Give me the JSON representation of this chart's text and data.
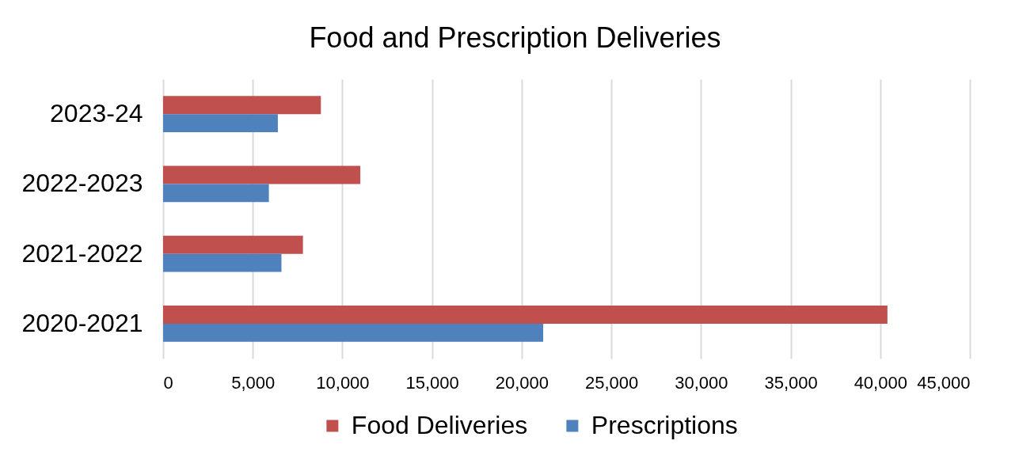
{
  "chart_data": {
    "type": "bar",
    "title": "Food and Prescription Deliveries",
    "orientation": "horizontal",
    "categories": [
      "2023-24",
      "2022-2023",
      "2021-2022",
      "2020-2021"
    ],
    "series": [
      {
        "name": "Food Deliveries",
        "color": "#c0504d",
        "values": [
          8800,
          11000,
          7800,
          40400
        ]
      },
      {
        "name": "Prescriptions",
        "color": "#4f81bd",
        "values": [
          6400,
          5900,
          6600,
          21200
        ]
      }
    ],
    "xlim": [
      0,
      45000
    ],
    "xticks": [
      0,
      {
        "value": 5000,
        "label": "5,000"
      },
      {
        "value": 10000,
        "label": "10,000"
      },
      {
        "value": 15000,
        "label": "15,000"
      },
      {
        "value": 20000,
        "label": "20,000"
      },
      {
        "value": 25000,
        "label": "25,000"
      },
      {
        "value": 30000,
        "label": "30,000"
      },
      {
        "value": 35000,
        "label": "35,000"
      },
      {
        "value": 40000,
        "label": "40,000"
      },
      {
        "value": 45000,
        "label": "45,000"
      }
    ],
    "grid": "x",
    "legend": "bottom"
  }
}
